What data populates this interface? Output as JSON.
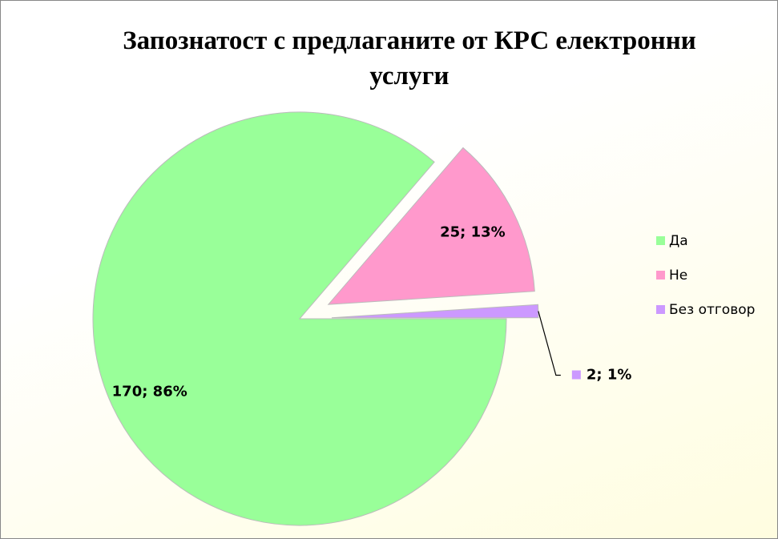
{
  "chart_data": {
    "type": "pie",
    "title": "Запознатост с предлаганите от КРС електронни услуги",
    "categories": [
      "Да",
      "Не",
      "Без отговор"
    ],
    "values": [
      170,
      25,
      2
    ],
    "value_labels": [
      "170; 86%",
      "25; 13%",
      "2; 1%"
    ],
    "colors": [
      "#99ff99",
      "#ff99cc",
      "#cc99ff"
    ],
    "legend": "right"
  }
}
